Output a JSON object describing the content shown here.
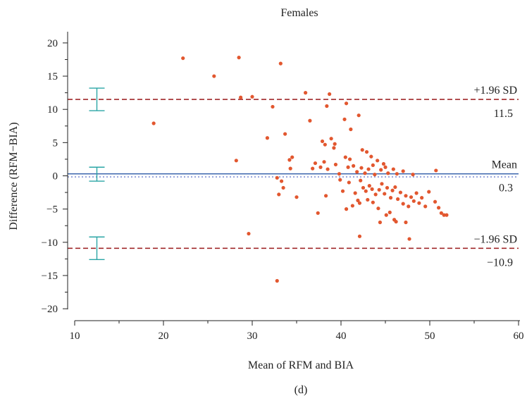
{
  "panel_label": "(d)",
  "colors": {
    "points": "#e2572f",
    "mean_line": "#2e5aa8",
    "limit_lines": "#a0282a",
    "ci_bars": "#2aa5a5",
    "zero_line": "#5a70c8",
    "axis": "#222222"
  },
  "chart_data": {
    "type": "scatter",
    "title": "Females",
    "xlabel": "Mean of RFM and BIA",
    "ylabel": "Difference (RFM−BIA)",
    "xlim": [
      10,
      60
    ],
    "ylim": [
      -22,
      22
    ],
    "xticks": [
      10,
      20,
      30,
      40,
      50,
      60
    ],
    "yticks": [
      -20,
      -15,
      -10,
      -5,
      0,
      5,
      10,
      15,
      20
    ],
    "ytick_labels": [
      "−20",
      "−15",
      "−10",
      "−5",
      "0",
      "5",
      "10",
      "15",
      "20"
    ],
    "grid": false,
    "reference_lines": [
      {
        "name": "+1.96 SD",
        "value": 11.5,
        "value_label": "11.5",
        "style": "dashed",
        "ci": [
          9.8,
          13.2
        ]
      },
      {
        "name": "Mean",
        "value": 0.3,
        "value_label": "0.3",
        "style": "solid",
        "ci": [
          -0.8,
          1.3
        ]
      },
      {
        "name": "−1.96 SD",
        "value": -10.9,
        "value_label": "−10.9",
        "style": "dashed",
        "ci": [
          -12.6,
          -9.2
        ]
      }
    ],
    "zero_line": 0,
    "ci_bar_x": 12.5,
    "points": [
      [
        22.2,
        17.7
      ],
      [
        28.5,
        17.8
      ],
      [
        33.2,
        16.9
      ],
      [
        25.7,
        15.0
      ],
      [
        36.0,
        12.5
      ],
      [
        38.7,
        12.3
      ],
      [
        28.7,
        11.8
      ],
      [
        30.0,
        11.9
      ],
      [
        40.6,
        10.9
      ],
      [
        32.3,
        10.4
      ],
      [
        38.4,
        10.5
      ],
      [
        42.0,
        9.1
      ],
      [
        18.9,
        7.9
      ],
      [
        36.5,
        8.3
      ],
      [
        41.1,
        7.0
      ],
      [
        40.4,
        8.5
      ],
      [
        33.7,
        6.3
      ],
      [
        31.7,
        5.7
      ],
      [
        37.9,
        5.2
      ],
      [
        38.2,
        4.7
      ],
      [
        38.9,
        5.6
      ],
      [
        39.3,
        4.8
      ],
      [
        40.5,
        2.8
      ],
      [
        39.2,
        4.2
      ],
      [
        42.4,
        3.9
      ],
      [
        42.9,
        3.6
      ],
      [
        44.1,
        2.3
      ],
      [
        41.0,
        2.5
      ],
      [
        43.4,
        2.9
      ],
      [
        44.8,
        1.8
      ],
      [
        28.2,
        2.3
      ],
      [
        34.2,
        2.4
      ],
      [
        34.5,
        2.8
      ],
      [
        36.8,
        1.1
      ],
      [
        37.7,
        1.3
      ],
      [
        38.1,
        2.1
      ],
      [
        38.5,
        1.0
      ],
      [
        39.4,
        1.7
      ],
      [
        40.8,
        1.3
      ],
      [
        41.8,
        0.6
      ],
      [
        42.3,
        1.2
      ],
      [
        42.7,
        0.4
      ],
      [
        43.1,
        1.0
      ],
      [
        43.8,
        0.2
      ],
      [
        44.5,
        0.9
      ],
      [
        45.3,
        0.4
      ],
      [
        45.9,
        1.0
      ],
      [
        47.0,
        0.7
      ],
      [
        50.7,
        0.8
      ],
      [
        34.3,
        1.1
      ],
      [
        37.1,
        1.9
      ],
      [
        39.8,
        0.3
      ],
      [
        41.4,
        1.5
      ],
      [
        43.6,
        1.6
      ],
      [
        45.0,
        1.3
      ],
      [
        46.3,
        0.3
      ],
      [
        48.1,
        0.2
      ],
      [
        33.3,
        -0.8
      ],
      [
        35.0,
        -3.2
      ],
      [
        33.5,
        -1.8
      ],
      [
        33.0,
        -2.8
      ],
      [
        32.8,
        -0.3
      ],
      [
        38.3,
        -3.0
      ],
      [
        39.9,
        -0.6
      ],
      [
        40.2,
        -2.3
      ],
      [
        40.9,
        -1.0
      ],
      [
        41.6,
        -2.6
      ],
      [
        42.2,
        -0.7
      ],
      [
        42.5,
        -1.8
      ],
      [
        42.8,
        -2.3
      ],
      [
        43.2,
        -1.5
      ],
      [
        43.5,
        -2.0
      ],
      [
        43.9,
        -2.8
      ],
      [
        44.3,
        -2.1
      ],
      [
        44.6,
        -1.2
      ],
      [
        44.9,
        -2.7
      ],
      [
        45.2,
        -1.8
      ],
      [
        45.6,
        -3.3
      ],
      [
        45.8,
        -2.2
      ],
      [
        46.1,
        -1.7
      ],
      [
        46.4,
        -3.5
      ],
      [
        46.7,
        -2.5
      ],
      [
        47.0,
        -4.2
      ],
      [
        47.3,
        -3.0
      ],
      [
        47.6,
        -4.6
      ],
      [
        47.9,
        -3.2
      ],
      [
        48.2,
        -3.8
      ],
      [
        48.5,
        -2.6
      ],
      [
        48.8,
        -4.1
      ],
      [
        49.1,
        -3.3
      ],
      [
        49.5,
        -4.6
      ],
      [
        49.9,
        -2.4
      ],
      [
        50.6,
        -3.9
      ],
      [
        51.0,
        -4.8
      ],
      [
        51.3,
        -5.6
      ],
      [
        51.6,
        -5.9
      ],
      [
        51.9,
        -5.9
      ],
      [
        37.4,
        -5.6
      ],
      [
        40.6,
        -5.0
      ],
      [
        41.3,
        -4.5
      ],
      [
        41.9,
        -3.7
      ],
      [
        42.1,
        -4.1
      ],
      [
        43.0,
        -3.6
      ],
      [
        43.6,
        -4.0
      ],
      [
        44.2,
        -4.9
      ],
      [
        45.1,
        -5.9
      ],
      [
        45.5,
        -5.5
      ],
      [
        46.0,
        -6.6
      ],
      [
        46.2,
        -6.9
      ],
      [
        47.3,
        -7.0
      ],
      [
        44.4,
        -7.0
      ],
      [
        42.1,
        -9.1
      ],
      [
        47.7,
        -9.5
      ],
      [
        29.6,
        -8.7
      ],
      [
        32.8,
        -15.8
      ]
    ]
  }
}
